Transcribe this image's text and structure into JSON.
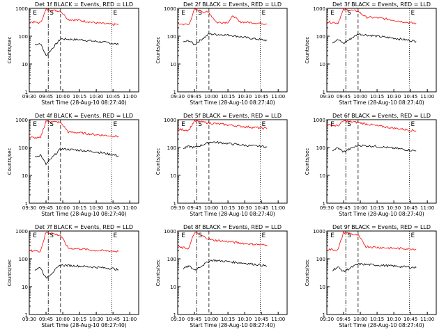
{
  "figure": {
    "x_axis_label": "Start Time (28-Aug-10 08:27:40)",
    "y_axis_label": "Counts/sec",
    "x_tick_labels": [
      "09:30",
      "09:45",
      "10:00",
      "10:15",
      "10:30",
      "10:45",
      "11:00"
    ],
    "y_tick_labels": [
      "1",
      "10",
      "100",
      "1000"
    ],
    "panel_markers": [
      "E",
      "S",
      "E"
    ],
    "series_colors": {
      "events": "#000000",
      "lld": "#ff0000"
    }
  },
  "chart_data": [
    {
      "type": "line",
      "title": "Det 1f BLACK = Events, RED = LLD",
      "xlabel": "Start Time (28-Aug-10 08:27:40)",
      "ylabel": "Counts/sec",
      "yscale": "log",
      "ylim": [
        1,
        1000
      ],
      "x_ticks": [
        "09:30",
        "09:45",
        "10:00",
        "10:15",
        "10:30",
        "10:45",
        "11:00"
      ],
      "markers": {
        "E_start": "09:32",
        "S": "09:47",
        "dashed": "09:58",
        "E_end": "10:44"
      },
      "series": [
        {
          "name": "Events",
          "points": [
            [
              "09:35",
              50
            ],
            [
              "09:40",
              55
            ],
            [
              "09:45",
              20
            ],
            [
              "09:58",
              80
            ],
            [
              "10:15",
              75
            ],
            [
              "10:30",
              65
            ],
            [
              "10:45",
              55
            ],
            [
              "10:50",
              50
            ]
          ]
        },
        {
          "name": "LLD",
          "points": [
            [
              "09:30",
              330
            ],
            [
              "09:40",
              300
            ],
            [
              "09:45",
              900
            ],
            [
              "09:58",
              800
            ],
            [
              "10:05",
              400
            ],
            [
              "10:15",
              370
            ],
            [
              "10:30",
              300
            ],
            [
              "10:45",
              260
            ],
            [
              "10:50",
              270
            ]
          ]
        }
      ]
    },
    {
      "type": "line",
      "title": "Det 2f BLACK = Events, RED = LLD",
      "xlabel": "Start Time (28-Aug-10 08:27:40)",
      "ylabel": "Counts/sec",
      "yscale": "log",
      "ylim": [
        1,
        1000
      ],
      "x_ticks": [
        "09:30",
        "09:45",
        "10:00",
        "10:15",
        "10:30",
        "10:45",
        "11:00"
      ],
      "markers": {
        "E_start": "09:32",
        "S": "09:47",
        "dashed": "09:58",
        "E_end": "10:44"
      },
      "series": [
        {
          "name": "Events",
          "points": [
            [
              "09:35",
              60
            ],
            [
              "09:40",
              70
            ],
            [
              "09:45",
              50
            ],
            [
              "09:58",
              120
            ],
            [
              "10:15",
              110
            ],
            [
              "10:20",
              105
            ],
            [
              "10:30",
              90
            ],
            [
              "10:45",
              75
            ],
            [
              "10:50",
              70
            ]
          ]
        },
        {
          "name": "LLD",
          "points": [
            [
              "09:30",
              280
            ],
            [
              "09:40",
              260
            ],
            [
              "09:45",
              900
            ],
            [
              "09:58",
              700
            ],
            [
              "10:05",
              310
            ],
            [
              "10:15",
              320
            ],
            [
              "10:20",
              550
            ],
            [
              "10:25",
              330
            ],
            [
              "10:30",
              320
            ],
            [
              "10:45",
              290
            ],
            [
              "10:50",
              280
            ]
          ]
        }
      ]
    },
    {
      "type": "line",
      "title": "Det 3f BLACK = Events, RED = LLD",
      "xlabel": "Start Time (28-Aug-10 08:27:40)",
      "ylabel": "Counts/sec",
      "yscale": "log",
      "ylim": [
        1,
        1000
      ],
      "x_ticks": [
        "09:30",
        "09:45",
        "10:00",
        "10:15",
        "10:30",
        "10:45",
        "11:00"
      ],
      "markers": {
        "E_start": "09:32",
        "S": "09:47",
        "dashed": "09:58",
        "E_end": "10:44"
      },
      "series": [
        {
          "name": "Events",
          "points": [
            [
              "09:35",
              60
            ],
            [
              "09:40",
              75
            ],
            [
              "09:45",
              55
            ],
            [
              "09:58",
              120
            ],
            [
              "10:15",
              100
            ],
            [
              "10:30",
              85
            ],
            [
              "10:45",
              70
            ],
            [
              "10:50",
              65
            ]
          ]
        },
        {
          "name": "LLD",
          "points": [
            [
              "09:30",
              330
            ],
            [
              "09:40",
              300
            ],
            [
              "09:45",
              900
            ],
            [
              "09:58",
              800
            ],
            [
              "10:05",
              480
            ],
            [
              "10:15",
              460
            ],
            [
              "10:30",
              380
            ],
            [
              "10:45",
              300
            ],
            [
              "10:50",
              290
            ]
          ]
        }
      ]
    },
    {
      "type": "line",
      "title": "Det 4f BLACK = Events, RED = LLD",
      "xlabel": "Start Time (28-Aug-10 08:27:40)",
      "ylabel": "Counts/sec",
      "yscale": "log",
      "ylim": [
        1,
        1000
      ],
      "x_ticks": [
        "09:30",
        "09:45",
        "10:00",
        "10:15",
        "10:30",
        "10:45",
        "11:00"
      ],
      "markers": {
        "E_start": "09:32",
        "S": "09:47",
        "dashed": "09:58",
        "E_end": "10:44"
      },
      "series": [
        {
          "name": "Events",
          "points": [
            [
              "09:35",
              45
            ],
            [
              "09:40",
              55
            ],
            [
              "09:45",
              25
            ],
            [
              "09:58",
              90
            ],
            [
              "10:15",
              80
            ],
            [
              "10:30",
              70
            ],
            [
              "10:45",
              55
            ],
            [
              "10:50",
              50
            ]
          ]
        },
        {
          "name": "LLD",
          "points": [
            [
              "09:30",
              230
            ],
            [
              "09:40",
              220
            ],
            [
              "09:45",
              900
            ],
            [
              "09:58",
              800
            ],
            [
              "10:05",
              360
            ],
            [
              "10:15",
              340
            ],
            [
              "10:30",
              290
            ],
            [
              "10:45",
              260
            ],
            [
              "10:50",
              250
            ]
          ]
        }
      ]
    },
    {
      "type": "line",
      "title": "Det 5f BLACK = Events, RED = LLD",
      "xlabel": "Start Time (28-Aug-10 08:27:40)",
      "ylabel": "Counts/sec",
      "yscale": "log",
      "ylim": [
        1,
        1000
      ],
      "x_ticks": [
        "09:30",
        "09:45",
        "10:00",
        "10:15",
        "10:30",
        "10:45",
        "11:00"
      ],
      "markers": {
        "E_start": "09:32",
        "S": "09:47",
        "dashed": "09:58",
        "E_end": "10:44"
      },
      "series": [
        {
          "name": "Events",
          "points": [
            [
              "09:35",
              90
            ],
            [
              "09:40",
              110
            ],
            [
              "09:45",
              100
            ],
            [
              "10:00",
              160
            ],
            [
              "10:15",
              140
            ],
            [
              "10:30",
              120
            ],
            [
              "10:45",
              110
            ],
            [
              "10:50",
              105
            ]
          ]
        },
        {
          "name": "LLD",
          "points": [
            [
              "09:30",
              450
            ],
            [
              "09:40",
              420
            ],
            [
              "09:45",
              900
            ],
            [
              "10:00",
              750
            ],
            [
              "10:15",
              650
            ],
            [
              "10:30",
              560
            ],
            [
              "10:45",
              500
            ],
            [
              "10:50",
              480
            ]
          ]
        }
      ]
    },
    {
      "type": "line",
      "title": "Det 6f BLACK = Events, RED = LLD",
      "xlabel": "Start Time (28-Aug-10 08:27:40)",
      "ylabel": "Counts/sec",
      "yscale": "log",
      "ylim": [
        1,
        1000
      ],
      "x_ticks": [
        "09:30",
        "09:45",
        "10:00",
        "10:15",
        "10:30",
        "10:45",
        "11:00"
      ],
      "markers": {
        "E_start": "09:32",
        "S": "09:47",
        "dashed": "09:58",
        "E_end": "10:44"
      },
      "series": [
        {
          "name": "Events",
          "points": [
            [
              "09:35",
              80
            ],
            [
              "09:40",
              95
            ],
            [
              "09:45",
              70
            ],
            [
              "09:58",
              120
            ],
            [
              "10:15",
              110
            ],
            [
              "10:30",
              95
            ],
            [
              "10:45",
              80
            ],
            [
              "10:50",
              75
            ]
          ]
        },
        {
          "name": "LLD",
          "points": [
            [
              "09:30",
              650
            ],
            [
              "09:40",
              600
            ],
            [
              "09:45",
              900
            ],
            [
              "09:58",
              800
            ],
            [
              "10:15",
              600
            ],
            [
              "10:30",
              500
            ],
            [
              "10:45",
              420
            ],
            [
              "10:50",
              400
            ]
          ]
        }
      ]
    },
    {
      "type": "line",
      "title": "Det 7f BLACK = Events, RED = LLD",
      "xlabel": "Start Time (28-Aug-10 08:27:40)",
      "ylabel": "Counts/sec",
      "yscale": "log",
      "ylim": [
        1,
        1000
      ],
      "x_ticks": [
        "09:30",
        "09:45",
        "10:00",
        "10:15",
        "10:30",
        "10:45",
        "11:00"
      ],
      "markers": {
        "E_start": "09:32",
        "S": "09:47",
        "dashed": "09:58",
        "E_end": "10:44"
      },
      "series": [
        {
          "name": "Events",
          "points": [
            [
              "09:35",
              40
            ],
            [
              "09:40",
              50
            ],
            [
              "09:45",
              20
            ],
            [
              "09:58",
              60
            ],
            [
              "10:15",
              55
            ],
            [
              "10:30",
              50
            ],
            [
              "10:45",
              45
            ],
            [
              "10:50",
              40
            ]
          ]
        },
        {
          "name": "LLD",
          "points": [
            [
              "09:30",
              200
            ],
            [
              "09:40",
              190
            ],
            [
              "09:45",
              900
            ],
            [
              "09:58",
              700
            ],
            [
              "10:05",
              240
            ],
            [
              "10:15",
              230
            ],
            [
              "10:30",
              200
            ],
            [
              "10:45",
              190
            ],
            [
              "10:50",
              185
            ]
          ]
        }
      ]
    },
    {
      "type": "line",
      "title": "Det 8f BLACK = Events, RED = LLD",
      "xlabel": "Start Time (28-Aug-10 08:27:40)",
      "ylabel": "Counts/sec",
      "yscale": "log",
      "ylim": [
        1,
        1000
      ],
      "x_ticks": [
        "09:30",
        "09:45",
        "10:00",
        "10:15",
        "10:30",
        "10:45",
        "11:00"
      ],
      "markers": {
        "E_start": "09:32",
        "S": "09:47",
        "dashed": "09:58",
        "E_end": "10:44"
      },
      "series": [
        {
          "name": "Events",
          "points": [
            [
              "09:35",
              45
            ],
            [
              "09:40",
              55
            ],
            [
              "09:45",
              40
            ],
            [
              "10:00",
              90
            ],
            [
              "10:15",
              80
            ],
            [
              "10:30",
              70
            ],
            [
              "10:45",
              60
            ],
            [
              "10:50",
              55
            ]
          ]
        },
        {
          "name": "LLD",
          "points": [
            [
              "09:30",
              260
            ],
            [
              "09:40",
              240
            ],
            [
              "09:45",
              900
            ],
            [
              "10:00",
              480
            ],
            [
              "10:15",
              420
            ],
            [
              "10:30",
              360
            ],
            [
              "10:45",
              320
            ],
            [
              "10:50",
              310
            ]
          ]
        }
      ]
    },
    {
      "type": "line",
      "title": "Det 9f BLACK = Events, RED = LLD",
      "xlabel": "Start Time (28-Aug-10 08:27:40)",
      "ylabel": "Counts/sec",
      "yscale": "log",
      "ylim": [
        1,
        1000
      ],
      "x_ticks": [
        "09:30",
        "09:45",
        "10:00",
        "10:15",
        "10:30",
        "10:45",
        "11:00"
      ],
      "markers": {
        "E_start": "09:32",
        "S": "09:47",
        "dashed": "09:58",
        "E_end": "10:44"
      },
      "series": [
        {
          "name": "Events",
          "points": [
            [
              "09:35",
              40
            ],
            [
              "09:40",
              50
            ],
            [
              "09:45",
              35
            ],
            [
              "09:58",
              65
            ],
            [
              "10:15",
              60
            ],
            [
              "10:30",
              55
            ],
            [
              "10:45",
              50
            ],
            [
              "10:50",
              48
            ]
          ]
        },
        {
          "name": "LLD",
          "points": [
            [
              "09:30",
              220
            ],
            [
              "09:40",
              210
            ],
            [
              "09:45",
              900
            ],
            [
              "09:58",
              700
            ],
            [
              "10:05",
              280
            ],
            [
              "10:15",
              260
            ],
            [
              "10:30",
              240
            ],
            [
              "10:45",
              230
            ],
            [
              "10:50",
              225
            ]
          ]
        }
      ]
    }
  ]
}
